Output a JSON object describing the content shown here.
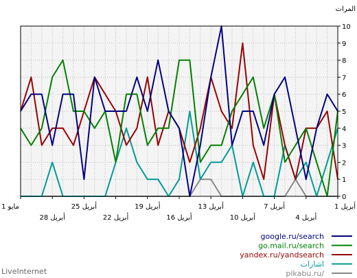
{
  "brand": "LiveInternet",
  "chart_data": {
    "type": "line",
    "ylabel": "المرات",
    "ylim": [
      0,
      10
    ],
    "y_ticks": [
      "0",
      "1",
      "2",
      "3",
      "4",
      "5",
      "6",
      "7",
      "8",
      "9",
      "10"
    ],
    "x_ticks_upper": [
      "1 مايو",
      "25 ﺃﺑﺮﻳﻞ",
      "19 ﺃﺑﺮﻳﻞ",
      "13 ﺃﺑﺮﻳﻞ",
      "7 ﺃﺑﺮﻳﻞ",
      "1 ﺃﺑﺮﻳﻞ"
    ],
    "x_ticks_lower": [
      "28 ﺃﺑﺮﻳﻞ",
      "22 ﺃﺑﺮﻳﻞ",
      "16 ﺃﺑﺮﻳﻞ",
      "10 ﺃﺑﺮﻳﻞ",
      "4 ﺃﺑﺮﻳﻞ"
    ],
    "x_order": "right-to-left (1 April at right edge, 1 May at left edge)",
    "grid": true,
    "legend_position": "bottom-right",
    "series": [
      {
        "name": "google.ru/search",
        "color": "#000080",
        "values": [
          5,
          6,
          6,
          3,
          6,
          6,
          1,
          7,
          5,
          5,
          5,
          7,
          5,
          8,
          5,
          4,
          0,
          3,
          7,
          10,
          3,
          5,
          5,
          3,
          6,
          7,
          4,
          1,
          4,
          6,
          5
        ]
      },
      {
        "name": "go.mail.ru/search",
        "color": "#008000",
        "values": [
          4,
          3,
          4,
          7,
          8,
          5,
          5,
          4,
          5,
          2,
          6,
          6,
          3,
          4,
          4,
          8,
          8,
          2,
          3,
          3,
          5,
          6,
          7,
          4,
          6,
          2,
          3,
          4,
          2,
          0,
          5
        ]
      },
      {
        "name": "yandex.ru/yandsearch",
        "color": "#990000",
        "values": [
          5,
          7,
          3,
          4,
          4,
          3,
          5,
          7,
          6,
          5,
          3,
          4,
          7,
          3,
          5,
          4,
          2,
          4,
          7,
          5,
          4,
          9,
          3,
          1,
          6,
          3,
          1,
          4,
          4,
          5,
          1
        ]
      },
      {
        "name": "اشارات",
        "color": "#009999",
        "values": [
          0,
          0,
          0,
          2,
          0,
          0,
          0,
          0,
          0,
          2,
          4,
          2,
          1,
          1,
          0,
          1,
          5,
          1,
          2,
          2,
          3,
          0,
          2,
          0,
          0,
          3,
          1,
          2,
          0,
          2,
          4
        ]
      },
      {
        "name": "pikabu.ru/",
        "color": "#888888",
        "values": [
          0,
          0,
          0,
          0,
          0,
          0,
          0,
          0,
          0,
          0,
          0,
          0,
          0,
          0,
          0,
          0,
          0,
          1,
          1,
          0,
          0,
          0,
          0,
          0,
          0,
          0,
          1,
          0,
          0,
          0,
          0
        ]
      }
    ]
  }
}
